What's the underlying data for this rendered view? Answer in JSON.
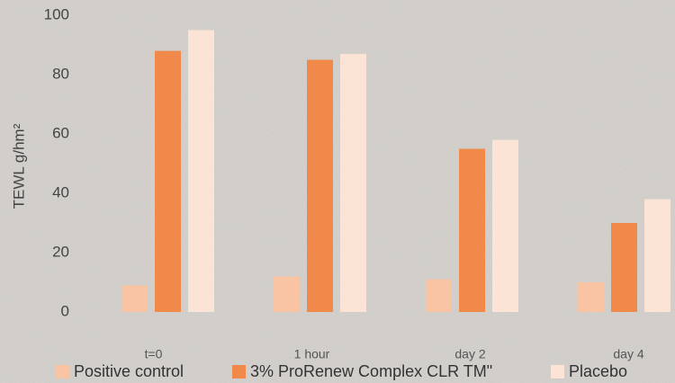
{
  "chart_data": {
    "type": "bar",
    "y_axis_label": "TEWL g/hm²",
    "categories": [
      "t=0",
      "1 hour",
      "day 2",
      "day 4"
    ],
    "series": [
      {
        "name": "Positive control",
        "color": "#f8c4a4",
        "values": [
          9,
          12,
          11,
          10
        ]
      },
      {
        "name": "3% ProRenew Complex CLR TM\"",
        "color": "#f0894a",
        "values": [
          88,
          85,
          55,
          30
        ]
      },
      {
        "name": "Placebo",
        "color": "#fbe3d6",
        "values": [
          95,
          87,
          58,
          38
        ]
      }
    ],
    "ylim": [
      0,
      100
    ],
    "yticks": [
      0,
      20,
      40,
      60,
      80,
      100
    ],
    "grid": false,
    "legend": "bottom"
  }
}
